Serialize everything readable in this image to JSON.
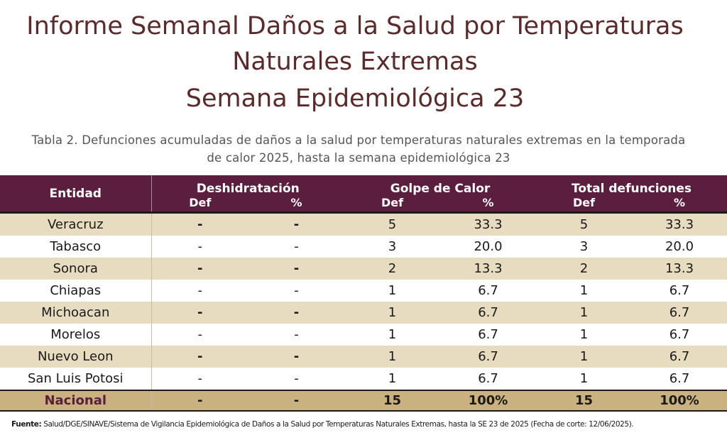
{
  "title": {
    "line1": "Informe Semanal  Daños a la Salud por Temperaturas",
    "line2": "Naturales Extremas",
    "line3": "Semana Epidemiológica 23"
  },
  "caption": {
    "line1": "Tabla 2.  Defunciones acumuladas de daños a la salud por temperaturas naturales extremas en la temporada",
    "line2": "de calor 2025, hasta la semana epidemiológica 23"
  },
  "table": {
    "col_entidad": "Entidad",
    "group_deshidratacion": "Deshidratación",
    "group_golpe": "Golpe de Calor",
    "group_total": "Total defunciones",
    "sub_def": "Def",
    "sub_pct": "%",
    "rows": [
      {
        "entidad": "Veracruz",
        "d_def": "-",
        "d_pct": "-",
        "g_def": "5",
        "g_pct": "33.3",
        "t_def": "5",
        "t_pct": "33.3"
      },
      {
        "entidad": "Tabasco",
        "d_def": "-",
        "d_pct": "-",
        "g_def": "3",
        "g_pct": "20.0",
        "t_def": "3",
        "t_pct": "20.0"
      },
      {
        "entidad": "Sonora",
        "d_def": "-",
        "d_pct": "-",
        "g_def": "2",
        "g_pct": "13.3",
        "t_def": "2",
        "t_pct": "13.3"
      },
      {
        "entidad": "Chiapas",
        "d_def": "-",
        "d_pct": "-",
        "g_def": "1",
        "g_pct": "6.7",
        "t_def": "1",
        "t_pct": "6.7"
      },
      {
        "entidad": "Michoacan",
        "d_def": "-",
        "d_pct": "-",
        "g_def": "1",
        "g_pct": "6.7",
        "t_def": "1",
        "t_pct": "6.7"
      },
      {
        "entidad": "Morelos",
        "d_def": "-",
        "d_pct": "-",
        "g_def": "1",
        "g_pct": "6.7",
        "t_def": "1",
        "t_pct": "6.7"
      },
      {
        "entidad": "Nuevo Leon",
        "d_def": "-",
        "d_pct": "-",
        "g_def": "1",
        "g_pct": "6.7",
        "t_def": "1",
        "t_pct": "6.7"
      },
      {
        "entidad": "San Luis Potosi",
        "d_def": "-",
        "d_pct": "-",
        "g_def": "1",
        "g_pct": "6.7",
        "t_def": "1",
        "t_pct": "6.7"
      }
    ],
    "total": {
      "entidad": "Nacional",
      "d_def": "-",
      "d_pct": "-",
      "g_def": "15",
      "g_pct": "100%",
      "t_def": "15",
      "t_pct": "100%"
    }
  },
  "source": {
    "label": "Fuente:",
    "text": "Salud/DGE/SINAVE/Sistema de Vigilancia Epidemiológica de Daños a la Salud por Temperaturas Naturales Extremas, hasta la SE 23 de 2025 (Fecha de corte: 12/06/2025)."
  },
  "colors": {
    "header_bg": "#5c1e3e",
    "band_bg": "#e8dcc0",
    "total_bg": "#c9b27f",
    "title_color": "#5b2a2a"
  }
}
